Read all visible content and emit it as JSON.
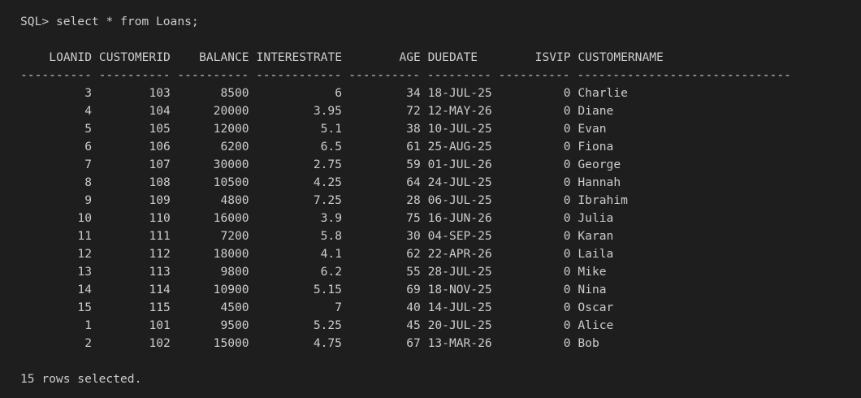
{
  "prompt": {
    "label": "SQL>",
    "command": "select * from Loans;"
  },
  "table": {
    "columns": [
      "LOANID",
      "CUSTOMERID",
      "BALANCE",
      "INTERESTRATE",
      "AGE",
      "DUEDATE",
      "ISVIP",
      "CUSTOMERNAME"
    ],
    "separator": "---------- ---------- ---------- ------------ ---------- --------- ---------- ------------------------------",
    "rows": [
      [
        "3",
        "103",
        "8500",
        "6",
        "34",
        "18-JUL-25",
        "0",
        "Charlie"
      ],
      [
        "4",
        "104",
        "20000",
        "3.95",
        "72",
        "12-MAY-26",
        "0",
        "Diane"
      ],
      [
        "5",
        "105",
        "12000",
        "5.1",
        "38",
        "10-JUL-25",
        "0",
        "Evan"
      ],
      [
        "6",
        "106",
        "6200",
        "6.5",
        "61",
        "25-AUG-25",
        "0",
        "Fiona"
      ],
      [
        "7",
        "107",
        "30000",
        "2.75",
        "59",
        "01-JUL-26",
        "0",
        "George"
      ],
      [
        "8",
        "108",
        "10500",
        "4.25",
        "64",
        "24-JUL-25",
        "0",
        "Hannah"
      ],
      [
        "9",
        "109",
        "4800",
        "7.25",
        "28",
        "06-JUL-25",
        "0",
        "Ibrahim"
      ],
      [
        "10",
        "110",
        "16000",
        "3.9",
        "75",
        "16-JUN-26",
        "0",
        "Julia"
      ],
      [
        "11",
        "111",
        "7200",
        "5.8",
        "30",
        "04-SEP-25",
        "0",
        "Karan"
      ],
      [
        "12",
        "112",
        "18000",
        "4.1",
        "62",
        "22-APR-26",
        "0",
        "Laila"
      ],
      [
        "13",
        "113",
        "9800",
        "6.2",
        "55",
        "28-JUL-25",
        "0",
        "Mike"
      ],
      [
        "14",
        "114",
        "10900",
        "5.15",
        "69",
        "18-NOV-25",
        "0",
        "Nina"
      ],
      [
        "15",
        "115",
        "4500",
        "7",
        "40",
        "14-JUL-25",
        "0",
        "Oscar"
      ],
      [
        "1",
        "101",
        "9500",
        "5.25",
        "45",
        "20-JUL-25",
        "0",
        "Alice"
      ],
      [
        "2",
        "102",
        "15000",
        "4.75",
        "67",
        "13-MAR-26",
        "0",
        "Bob"
      ]
    ]
  },
  "footer": "15 rows selected.",
  "colors": {
    "background": "#1e1e1e",
    "text": "#cccccc"
  }
}
